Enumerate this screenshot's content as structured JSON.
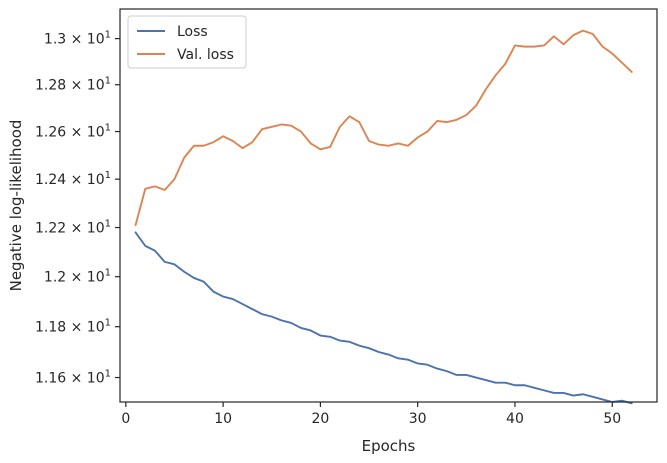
{
  "chart_data": {
    "type": "line",
    "xlabel": "Epochs",
    "ylabel": "Negative log-likelihood",
    "xlim": [
      -0.6,
      54.6
    ],
    "ylim": [
      11.505,
      13.13
    ],
    "yscale": "log",
    "xticks": [
      0,
      10,
      20,
      30,
      40,
      50
    ],
    "xtick_labels": [
      "0",
      "10",
      "20",
      "30",
      "40",
      "50"
    ],
    "yticks": [
      11.6,
      11.8,
      12.0,
      12.2,
      12.4,
      12.6,
      12.8,
      13.0
    ],
    "ytick_labels": [
      {
        "mant": "1.16",
        "exp": "1"
      },
      {
        "mant": "1.18",
        "exp": "1"
      },
      {
        "mant": "1.2",
        "exp": "1"
      },
      {
        "mant": "1.22",
        "exp": "1"
      },
      {
        "mant": "1.24",
        "exp": "1"
      },
      {
        "mant": "1.26",
        "exp": "1"
      },
      {
        "mant": "1.28",
        "exp": "1"
      },
      {
        "mant": "1.3",
        "exp": "1"
      }
    ],
    "grid": false,
    "legend_position": "top-left",
    "x": [
      1,
      2,
      3,
      4,
      5,
      6,
      7,
      8,
      9,
      10,
      11,
      12,
      13,
      14,
      15,
      16,
      17,
      18,
      19,
      20,
      21,
      22,
      23,
      24,
      25,
      26,
      27,
      28,
      29,
      30,
      31,
      32,
      33,
      34,
      35,
      36,
      37,
      38,
      39,
      40,
      41,
      42,
      43,
      44,
      45,
      46,
      47,
      48,
      49,
      50,
      51,
      52
    ],
    "series": [
      {
        "name": "Loss",
        "color": "#4c72b0",
        "values": [
          12.18,
          12.125,
          12.105,
          12.06,
          12.05,
          12.02,
          11.995,
          11.98,
          11.94,
          11.92,
          11.91,
          11.89,
          11.87,
          11.85,
          11.84,
          11.825,
          11.815,
          11.795,
          11.785,
          11.765,
          11.76,
          11.745,
          11.74,
          11.725,
          11.715,
          11.7,
          11.69,
          11.675,
          11.67,
          11.655,
          11.65,
          11.635,
          11.625,
          11.61,
          11.61,
          11.6,
          11.59,
          11.58,
          11.58,
          11.57,
          11.57,
          11.56,
          11.55,
          11.54,
          11.54,
          11.53,
          11.535,
          11.525,
          11.515,
          11.505,
          11.51,
          11.5
        ]
      },
      {
        "name": "Val. loss",
        "color": "#dd8452",
        "values": [
          12.21,
          12.36,
          12.37,
          12.355,
          12.4,
          12.49,
          12.54,
          12.54,
          12.555,
          12.58,
          12.56,
          12.53,
          12.555,
          12.61,
          12.62,
          12.63,
          12.625,
          12.6,
          12.55,
          12.525,
          12.535,
          12.62,
          12.665,
          12.64,
          12.56,
          12.545,
          12.54,
          12.55,
          12.54,
          12.575,
          12.6,
          12.645,
          12.64,
          12.65,
          12.67,
          12.71,
          12.78,
          12.84,
          12.89,
          12.97,
          12.965,
          12.965,
          12.97,
          13.01,
          12.975,
          13.015,
          13.035,
          13.02,
          12.965,
          12.935,
          12.895,
          12.855
        ]
      }
    ]
  }
}
